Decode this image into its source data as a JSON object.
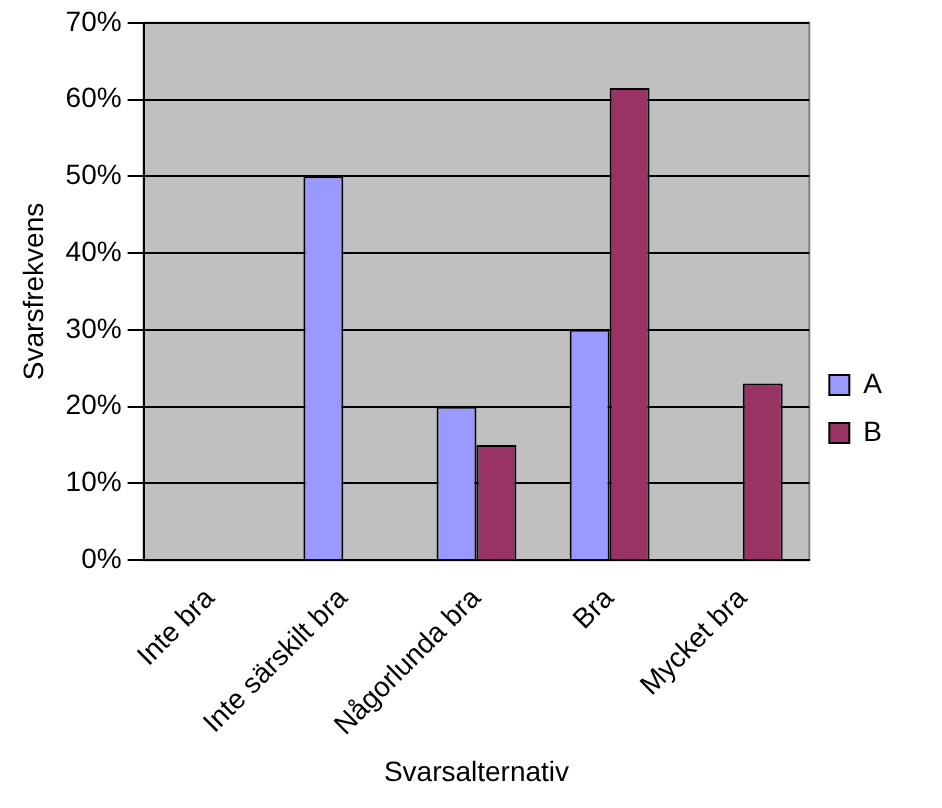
{
  "chart_data": {
    "type": "bar",
    "xlabel": "Svarsalternativ",
    "ylabel": "Svarsfrekvens",
    "categories": [
      "Inte bra",
      "Inte särskilt bra",
      "Någorlunda bra",
      "Bra",
      "Mycket bra"
    ],
    "series": [
      {
        "name": "A",
        "color": "#9999ff",
        "values": [
          0,
          50,
          20,
          30,
          0
        ]
      },
      {
        "name": "B",
        "color": "#993366",
        "values": [
          0,
          0,
          15,
          61.5,
          23
        ]
      }
    ],
    "ylim": [
      0,
      70
    ],
    "yticks": [
      {
        "value": 0,
        "label": "0%"
      },
      {
        "value": 10,
        "label": "10%"
      },
      {
        "value": 20,
        "label": "20%"
      },
      {
        "value": 30,
        "label": "30%"
      },
      {
        "value": 40,
        "label": "40%"
      },
      {
        "value": 50,
        "label": "50%"
      },
      {
        "value": 60,
        "label": "60%"
      },
      {
        "value": 70,
        "label": "70%"
      }
    ],
    "grid": "y",
    "legend": "right"
  }
}
